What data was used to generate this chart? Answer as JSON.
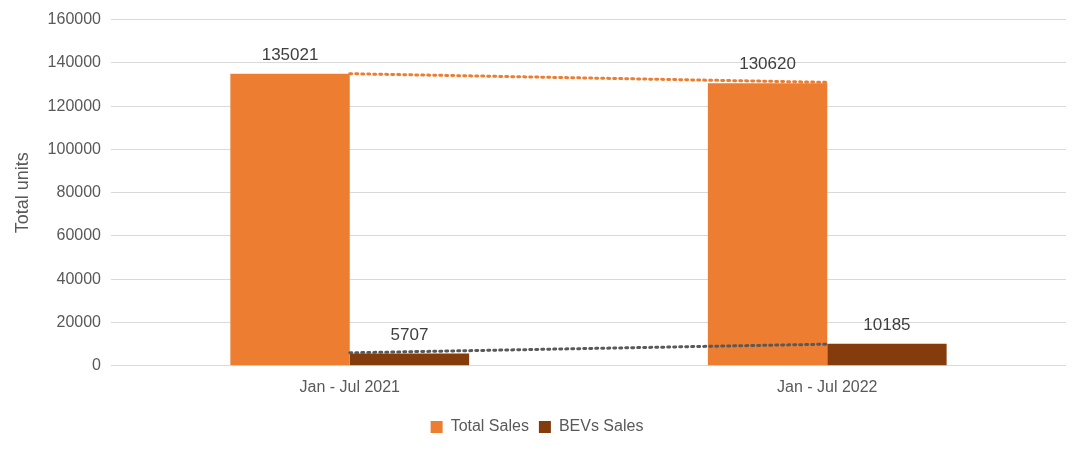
{
  "chart_data": {
    "type": "bar",
    "ylabel": "Total units",
    "categories": [
      "Jan - Jul 2021",
      "Jan - Jul 2022"
    ],
    "series": [
      {
        "name": "Total Sales",
        "color": "#ed7d31",
        "values": [
          135021,
          130620
        ],
        "value_labels": [
          "135021",
          "130620"
        ]
      },
      {
        "name": "BEVs Sales",
        "color": "#843c0c",
        "values": [
          5707,
          10185
        ],
        "value_labels": [
          "5707",
          "10185"
        ]
      },
      {
        "type": "line",
        "color": "#ed7d31",
        "values": [
          135000,
          131000
        ],
        "line_style": "dotted",
        "marker": "none"
      },
      {
        "type": "line",
        "color": "#595959",
        "values": [
          6000,
          10000
        ],
        "line_style": "dotted",
        "marker": "none"
      }
    ],
    "ylim": [
      0,
      160000
    ],
    "yticks": [
      0,
      20000,
      40000,
      60000,
      80000,
      100000,
      120000,
      140000,
      160000
    ],
    "grid": "y",
    "legend": "bottom"
  }
}
